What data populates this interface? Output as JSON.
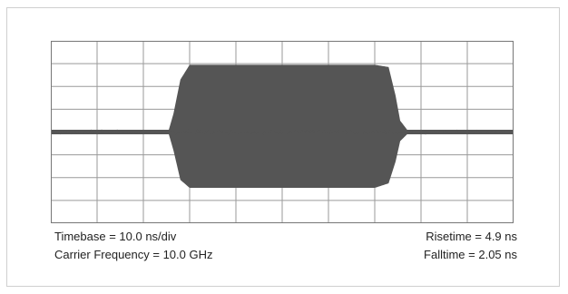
{
  "chart_data": {
    "type": "area",
    "grid": true,
    "x_divisions": 10,
    "y_divisions": 8,
    "x_unit": "ns",
    "xlim": [
      0,
      100
    ],
    "ylim": [
      -4,
      4
    ],
    "envelope": {
      "x": [
        0,
        25.5,
        26.5,
        28,
        30,
        70,
        73,
        74.5,
        75.5,
        77,
        100
      ],
      "upper": [
        0.1,
        0.1,
        0.8,
        2.3,
        2.95,
        2.95,
        2.85,
        1.6,
        0.5,
        0.1,
        0.1
      ],
      "lower": [
        -0.1,
        -0.1,
        -0.8,
        -2.1,
        -2.45,
        -2.45,
        -2.25,
        -1.3,
        -0.4,
        -0.1,
        -0.1
      ]
    },
    "baseline_noise": 0.08,
    "colors": {
      "signal": "#555555",
      "grid": "#9a9a9a",
      "border": "#777777"
    }
  },
  "annotations": {
    "timebase": "Timebase = 10.0 ns/div",
    "carrier": "Carrier Frequency = 10.0 GHz",
    "risetime": "Risetime = 4.9 ns",
    "falltime": "Falltime = 2.05 ns"
  }
}
